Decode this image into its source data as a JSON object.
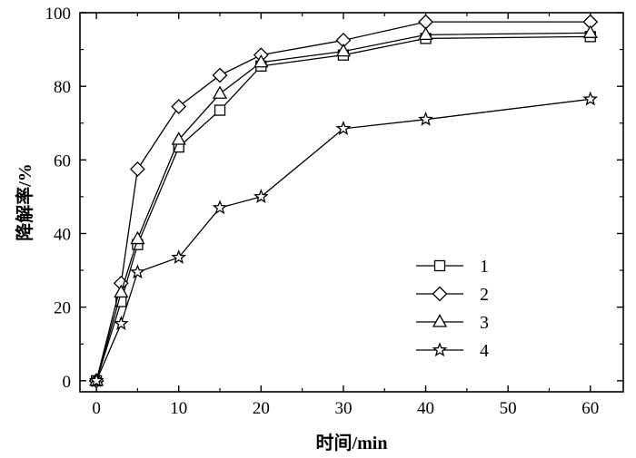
{
  "chart_data": {
    "type": "line",
    "title": "",
    "xlabel": "时间/min",
    "ylabel": "降解率/%",
    "xlim": [
      -2,
      64
    ],
    "ylim": [
      -3,
      100
    ],
    "xticks": [
      0,
      10,
      20,
      30,
      40,
      50,
      60
    ],
    "yticks": [
      0,
      20,
      40,
      60,
      80,
      100
    ],
    "grid": false,
    "legend_position": "lower-right",
    "series": [
      {
        "name": "1",
        "marker": "square",
        "x": [
          0,
          3,
          5,
          10,
          15,
          20,
          30,
          40,
          60
        ],
        "y": [
          0,
          21.5,
          37,
          63.5,
          73.5,
          85.5,
          88.5,
          93,
          93.5
        ]
      },
      {
        "name": "2",
        "marker": "diamond",
        "x": [
          0,
          3,
          5,
          10,
          15,
          20,
          30,
          40,
          60
        ],
        "y": [
          0,
          26.5,
          57.5,
          74.5,
          83,
          88.5,
          92.5,
          97.5,
          97.5
        ]
      },
      {
        "name": "3",
        "marker": "triangle",
        "x": [
          0,
          3,
          5,
          10,
          15,
          20,
          30,
          40,
          60
        ],
        "y": [
          0,
          24,
          38.5,
          65.5,
          78,
          86.5,
          89.5,
          94,
          94.5
        ]
      },
      {
        "name": "4",
        "marker": "star",
        "x": [
          0,
          3,
          5,
          10,
          15,
          20,
          30,
          40,
          60
        ],
        "y": [
          0,
          15.5,
          29.5,
          33.5,
          47,
          50,
          68.5,
          71,
          76.5
        ]
      }
    ]
  }
}
